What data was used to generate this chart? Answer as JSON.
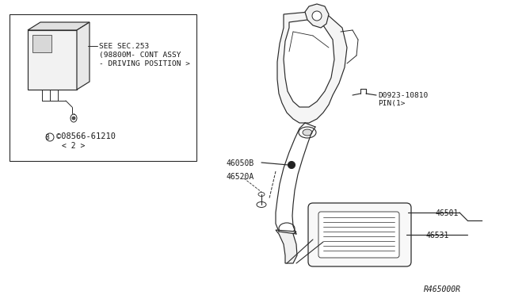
{
  "bg_color": "#ffffff",
  "line_color": "#2a2a2a",
  "text_color": "#1a1a1a",
  "fig_width": 6.4,
  "fig_height": 3.72,
  "watermark": "R465000R",
  "label_sec": "SEE SEC.253",
  "label_cont1": "(98800M- CONT ASSY",
  "label_cont2": "- DRIVING POSITION >",
  "label_bolt": "©08566-61210",
  "label_bolt_qty": "< 2 >",
  "label_pin_num": "D0923-10810",
  "label_pin_qty": "PIN(1>",
  "label_46050B": "46050B",
  "label_46520A": "46520A",
  "label_46501": "46501",
  "label_46531": "46531"
}
